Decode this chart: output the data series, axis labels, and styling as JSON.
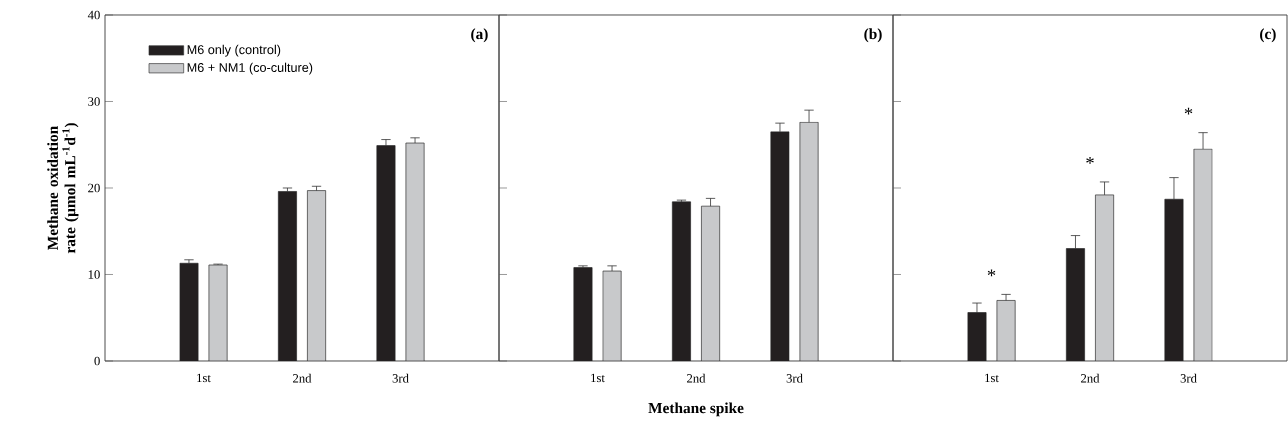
{
  "chart_data": [
    {
      "type": "bar",
      "title": "(a)",
      "ylabel": "Methane oxidation rate (µmol mL$^{-1}$d$^{-1}$)",
      "categories": [
        "1st",
        "2nd",
        "3rd"
      ],
      "ylim": [
        0,
        40
      ],
      "yticks": [
        0,
        10,
        20,
        30,
        40
      ],
      "legend": "top left",
      "series": [
        {
          "name": "M6 only (control)",
          "color": "#231f20",
          "values": [
            11.3,
            19.6,
            24.9
          ],
          "errors": [
            0.4,
            0.4,
            0.7
          ]
        },
        {
          "name": "M6 + NM1 (co-culture)",
          "color": "#c8c9cb",
          "values": [
            11.1,
            19.7,
            25.2
          ],
          "errors": [
            0.1,
            0.5,
            0.6
          ]
        }
      ]
    },
    {
      "type": "bar",
      "title": "(b)",
      "xlabel": "Methane spike",
      "categories": [
        "1st",
        "2nd",
        "3rd"
      ],
      "ylim": [
        0,
        40
      ],
      "yticks": [
        0,
        10,
        20,
        30,
        40
      ],
      "tick_labels": "x",
      "series": [
        {
          "color": "#231f20",
          "values": [
            10.8,
            18.4,
            26.5
          ],
          "errors": [
            0.2,
            0.2,
            1.0
          ]
        },
        {
          "color": "#c8c9cb",
          "values": [
            10.4,
            17.9,
            27.6
          ],
          "errors": [
            0.6,
            0.9,
            1.4
          ]
        }
      ]
    },
    {
      "type": "bar",
      "title": "(c)",
      "categories": [
        "1st",
        "2nd",
        "3rd"
      ],
      "ylim": [
        0,
        40
      ],
      "yticks": [
        0,
        10,
        20,
        30,
        40
      ],
      "tick_labels": "x",
      "annotations": [
        "*",
        "*",
        "*"
      ],
      "series": [
        {
          "color": "#231f20",
          "values": [
            5.6,
            13.0,
            18.7
          ],
          "errors": [
            1.1,
            1.5,
            2.5
          ]
        },
        {
          "color": "#c8c9cb",
          "values": [
            7.0,
            19.2,
            24.5
          ],
          "errors": [
            0.7,
            1.5,
            1.9
          ]
        }
      ]
    }
  ]
}
